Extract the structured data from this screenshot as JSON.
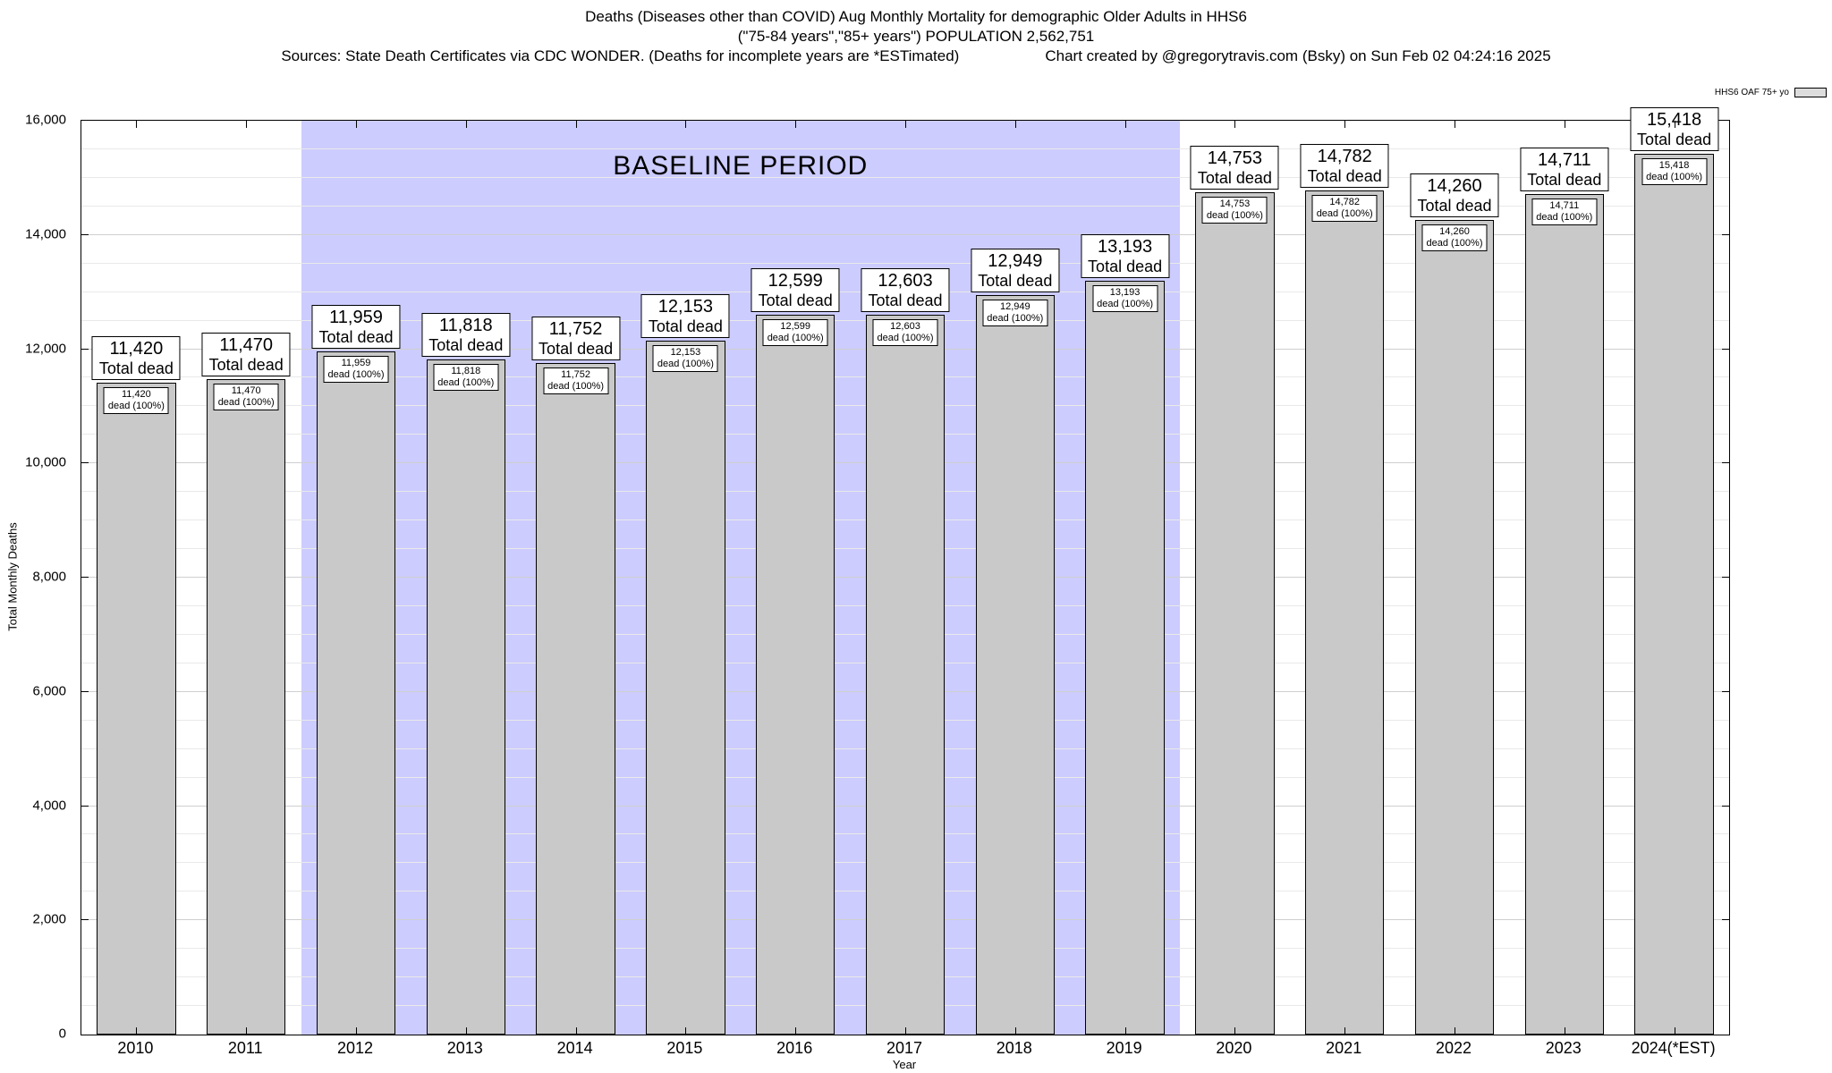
{
  "chart_data": {
    "type": "bar",
    "title": "Deaths (Diseases other than COVID) Aug Monthly Mortality for demographic Older Adults in HHS6",
    "subtitle": "(\"75-84 years\",\"85+ years\") POPULATION 2,562,751",
    "source_note": "Sources: State Death Certificates via CDC WONDER. (Deaths for incomplete years are *ESTimated)",
    "credit_note": "Chart created by @gregorytravis.com (Bsky) on Sun Feb 02 04:24:16 2025",
    "legend_label": "HHS6 OAF 75+ yo",
    "legend_position": "top-right",
    "xlabel": "Year",
    "ylabel": "Total Monthly Deaths",
    "ylim": [
      0,
      16000
    ],
    "ytick_step": 2000,
    "minor_step": 500,
    "ytick_labels": [
      "0",
      "2,000",
      "4,000",
      "6,000",
      "8,000",
      "10,000",
      "12,000",
      "14,000",
      "16,000"
    ],
    "grid": true,
    "categories": [
      "2010",
      "2011",
      "2012",
      "2013",
      "2014",
      "2015",
      "2016",
      "2017",
      "2018",
      "2019",
      "2020",
      "2021",
      "2022",
      "2023",
      "2024(*EST)"
    ],
    "values": [
      11420,
      11470,
      11959,
      11818,
      11752,
      12153,
      12599,
      12603,
      12949,
      13193,
      14753,
      14782,
      14260,
      14711,
      15418
    ],
    "value_labels": [
      "11,420",
      "11,470",
      "11,959",
      "11,818",
      "11,752",
      "12,153",
      "12,599",
      "12,603",
      "12,949",
      "13,193",
      "14,753",
      "14,782",
      "14,260",
      "14,711",
      "15,418"
    ],
    "annotation_top_suffix": "Total dead",
    "annotation_bar_suffix": "dead (100%)",
    "bar_color": "#c9c9c9",
    "baseline_region": {
      "label": "BASELINE PERIOD",
      "from": "2012",
      "to": "2019",
      "color": "#ccccff"
    }
  }
}
